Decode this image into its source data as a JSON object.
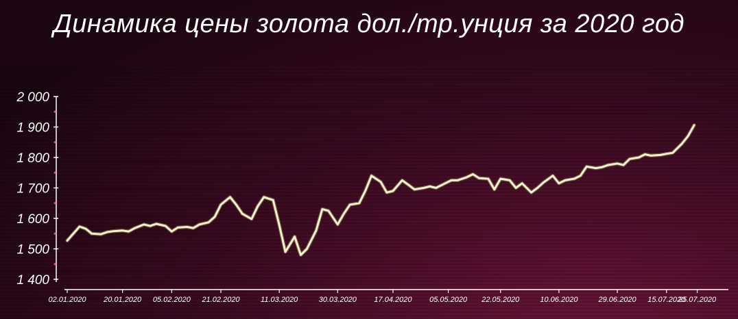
{
  "chart_data": {
    "type": "line",
    "title": "Динамика цены золота дол./тр.унция за 2020 год",
    "xlabel": "",
    "ylabel": "",
    "ylim": [
      1400,
      2000
    ],
    "yticks": [
      {
        "value": 2000,
        "label": "2 000"
      },
      {
        "value": 1900,
        "label": "1 900"
      },
      {
        "value": 1800,
        "label": "1 800"
      },
      {
        "value": 1700,
        "label": "1 700"
      },
      {
        "value": 1600,
        "label": "1 600"
      },
      {
        "value": 1500,
        "label": "1 500"
      },
      {
        "value": 1400,
        "label": "1 400"
      }
    ],
    "xlim": [
      "2020-01-02",
      "2020-07-28"
    ],
    "xticks": [
      "02.01.2020",
      "20.01.2020",
      "05.02.2020",
      "21.02.2020",
      "11.03.2020",
      "30.03.2020",
      "17.04.2020",
      "05.05.2020",
      "22.05.2020",
      "10.06.2020",
      "29.06.2020",
      "15.07.2020",
      "25.07.2020"
    ],
    "grid": false,
    "legend": "none",
    "line_color": "#f4efd2",
    "series": [
      {
        "x": [
          "2020-01-02",
          "2020-01-06",
          "2020-01-08",
          "2020-01-10",
          "2020-01-13",
          "2020-01-15",
          "2020-01-17",
          "2020-01-20",
          "2020-01-22",
          "2020-01-24",
          "2020-01-27",
          "2020-01-29",
          "2020-01-31",
          "2020-02-03",
          "2020-02-05",
          "2020-02-07",
          "2020-02-10",
          "2020-02-12",
          "2020-02-14",
          "2020-02-17",
          "2020-02-19",
          "2020-02-21",
          "2020-02-24",
          "2020-02-26",
          "2020-02-28",
          "2020-03-02",
          "2020-03-04",
          "2020-03-06",
          "2020-03-09",
          "2020-03-11",
          "2020-03-13",
          "2020-03-16",
          "2020-03-18",
          "2020-03-20",
          "2020-03-23",
          "2020-03-25",
          "2020-03-27",
          "2020-03-30",
          "2020-04-01",
          "2020-04-03",
          "2020-04-06",
          "2020-04-08",
          "2020-04-10",
          "2020-04-13",
          "2020-04-15",
          "2020-04-17",
          "2020-04-20",
          "2020-04-22",
          "2020-04-24",
          "2020-04-27",
          "2020-04-29",
          "2020-05-01",
          "2020-05-04",
          "2020-05-06",
          "2020-05-08",
          "2020-05-11",
          "2020-05-13",
          "2020-05-15",
          "2020-05-18",
          "2020-05-20",
          "2020-05-22",
          "2020-05-25",
          "2020-05-27",
          "2020-05-29",
          "2020-06-01",
          "2020-06-03",
          "2020-06-05",
          "2020-06-08",
          "2020-06-10",
          "2020-06-12",
          "2020-06-15",
          "2020-06-17",
          "2020-06-19",
          "2020-06-22",
          "2020-06-24",
          "2020-06-26",
          "2020-06-29",
          "2020-07-01",
          "2020-07-03",
          "2020-07-06",
          "2020-07-08",
          "2020-07-10",
          "2020-07-13",
          "2020-07-15",
          "2020-07-17",
          "2020-07-20",
          "2020-07-22",
          "2020-07-24"
        ],
        "values": [
          1527,
          1573,
          1566,
          1550,
          1548,
          1555,
          1558,
          1560,
          1557,
          1568,
          1580,
          1575,
          1582,
          1575,
          1557,
          1570,
          1572,
          1568,
          1580,
          1587,
          1605,
          1645,
          1670,
          1645,
          1615,
          1598,
          1640,
          1670,
          1660,
          1578,
          1490,
          1540,
          1480,
          1500,
          1560,
          1630,
          1625,
          1580,
          1615,
          1645,
          1650,
          1690,
          1740,
          1720,
          1685,
          1690,
          1725,
          1710,
          1695,
          1700,
          1705,
          1700,
          1715,
          1725,
          1725,
          1735,
          1745,
          1732,
          1730,
          1695,
          1730,
          1725,
          1700,
          1715,
          1685,
          1700,
          1718,
          1740,
          1715,
          1725,
          1730,
          1740,
          1770,
          1765,
          1768,
          1775,
          1780,
          1775,
          1795,
          1800,
          1810,
          1806,
          1808,
          1812,
          1815,
          1845,
          1870,
          1906
        ]
      }
    ]
  }
}
